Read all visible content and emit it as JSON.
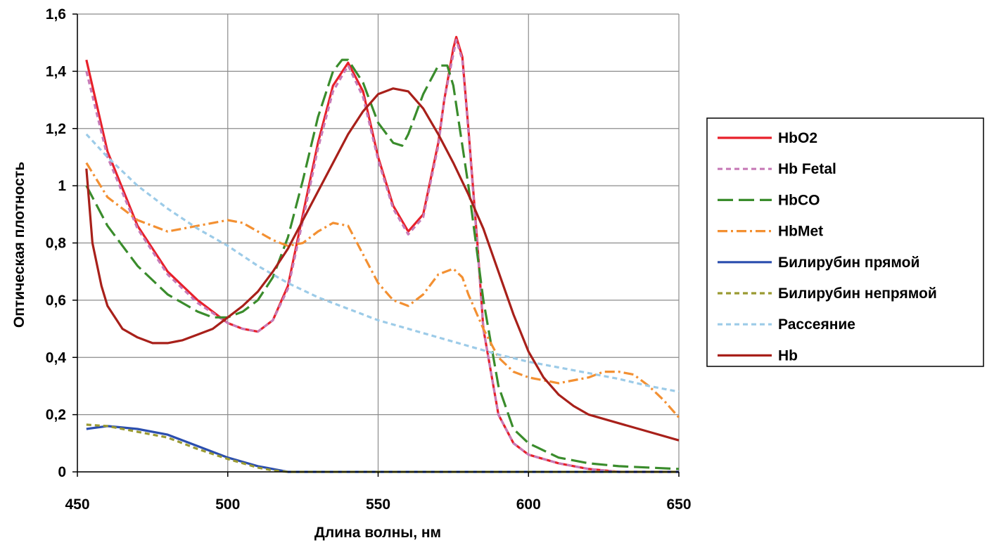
{
  "chart_data": {
    "type": "line",
    "title": "",
    "xlabel": "Длина волны, нм",
    "ylabel": "Оптическая плотность",
    "xlim": [
      450,
      650
    ],
    "ylim": [
      0,
      1.6
    ],
    "x_ticks": [
      450,
      500,
      550,
      600,
      650
    ],
    "x_tick_labels": [
      "450",
      "500",
      "550",
      "600",
      "650"
    ],
    "y_ticks": [
      0,
      0.2,
      0.4,
      0.6,
      0.8,
      1.0,
      1.2,
      1.4,
      1.6
    ],
    "y_tick_labels": [
      "0",
      "0,2",
      "0,4",
      "0,6",
      "0,8",
      "1",
      "1,2",
      "1,4",
      "1,6"
    ],
    "grid": true,
    "legend_position": "right",
    "series": [
      {
        "name": "HbO2",
        "color": "#e8202a",
        "dash": "solid",
        "x": [
          453,
          460,
          470,
          480,
          490,
          500,
          505,
          510,
          515,
          520,
          525,
          530,
          535,
          540,
          545,
          550,
          555,
          560,
          565,
          570,
          572,
          575,
          576,
          578,
          580,
          583,
          585,
          590,
          595,
          600,
          610,
          620,
          630,
          650
        ],
        "y": [
          1.44,
          1.12,
          0.86,
          0.7,
          0.6,
          0.52,
          0.5,
          0.49,
          0.53,
          0.65,
          0.9,
          1.15,
          1.35,
          1.43,
          1.33,
          1.1,
          0.93,
          0.84,
          0.9,
          1.15,
          1.3,
          1.48,
          1.52,
          1.45,
          1.2,
          0.8,
          0.5,
          0.2,
          0.1,
          0.06,
          0.03,
          0.01,
          0.0,
          0.0
        ]
      },
      {
        "name": "Hb Fetal",
        "color": "#c77bb7",
        "dash": "dashed",
        "x": [
          453,
          460,
          470,
          480,
          490,
          500,
          505,
          510,
          515,
          520,
          525,
          530,
          535,
          540,
          545,
          550,
          555,
          560,
          565,
          570,
          572,
          575,
          576,
          578,
          580,
          583,
          585,
          590,
          595,
          600,
          610,
          620,
          630,
          650
        ],
        "y": [
          1.4,
          1.1,
          0.85,
          0.69,
          0.59,
          0.52,
          0.5,
          0.49,
          0.53,
          0.64,
          0.88,
          1.13,
          1.33,
          1.42,
          1.31,
          1.09,
          0.92,
          0.83,
          0.89,
          1.14,
          1.3,
          1.46,
          1.51,
          1.44,
          1.19,
          0.79,
          0.5,
          0.2,
          0.1,
          0.06,
          0.03,
          0.01,
          0.0,
          0.0
        ]
      },
      {
        "name": "HbCO",
        "color": "#3a8c2c",
        "dash": "longdash",
        "x": [
          453,
          460,
          470,
          480,
          490,
          495,
          500,
          505,
          510,
          515,
          520,
          525,
          530,
          535,
          538,
          540,
          545,
          550,
          555,
          558,
          560,
          565,
          570,
          573,
          575,
          580,
          585,
          590,
          595,
          600,
          610,
          620,
          630,
          650
        ],
        "y": [
          1.0,
          0.86,
          0.72,
          0.62,
          0.56,
          0.54,
          0.54,
          0.56,
          0.6,
          0.68,
          0.82,
          1.02,
          1.24,
          1.4,
          1.44,
          1.44,
          1.36,
          1.22,
          1.15,
          1.14,
          1.18,
          1.32,
          1.42,
          1.42,
          1.35,
          1.0,
          0.6,
          0.3,
          0.15,
          0.1,
          0.05,
          0.03,
          0.02,
          0.01
        ]
      },
      {
        "name": "HbMet",
        "color": "#f39032",
        "dash": "dashdot",
        "x": [
          453,
          460,
          470,
          480,
          490,
          500,
          505,
          510,
          515,
          520,
          525,
          530,
          535,
          540,
          545,
          550,
          555,
          560,
          565,
          570,
          575,
          578,
          580,
          585,
          590,
          595,
          600,
          605,
          610,
          620,
          625,
          630,
          635,
          640,
          645,
          650
        ],
        "y": [
          1.08,
          0.96,
          0.88,
          0.84,
          0.86,
          0.88,
          0.87,
          0.84,
          0.81,
          0.79,
          0.8,
          0.84,
          0.87,
          0.86,
          0.76,
          0.66,
          0.6,
          0.58,
          0.62,
          0.69,
          0.71,
          0.68,
          0.62,
          0.5,
          0.4,
          0.35,
          0.33,
          0.32,
          0.31,
          0.33,
          0.35,
          0.35,
          0.34,
          0.3,
          0.25,
          0.19
        ]
      },
      {
        "name": "Билирубин прямой",
        "color": "#2b4eae",
        "dash": "solid",
        "x": [
          453,
          460,
          470,
          480,
          490,
          500,
          510,
          515,
          520,
          525,
          550,
          600,
          650
        ],
        "y": [
          0.15,
          0.16,
          0.15,
          0.13,
          0.09,
          0.05,
          0.02,
          0.01,
          0.0,
          0.0,
          0.0,
          0.0,
          0.0
        ]
      },
      {
        "name": "Билирубин непрямой",
        "color": "#9a9a32",
        "dash": "dashed",
        "x": [
          453,
          460,
          470,
          480,
          490,
          500,
          510,
          515,
          520,
          525,
          550,
          600,
          650
        ],
        "y": [
          0.165,
          0.16,
          0.14,
          0.12,
          0.08,
          0.045,
          0.015,
          0.005,
          0.0,
          0.0,
          0.0,
          0.0,
          0.0
        ]
      },
      {
        "name": "Рассеяние",
        "color": "#9ccbe8",
        "dash": "dashed",
        "x": [
          453,
          460,
          470,
          480,
          490,
          500,
          510,
          520,
          530,
          540,
          550,
          560,
          570,
          580,
          590,
          600,
          610,
          620,
          630,
          640,
          650
        ],
        "y": [
          1.18,
          1.1,
          1.0,
          0.92,
          0.85,
          0.79,
          0.72,
          0.66,
          0.61,
          0.57,
          0.53,
          0.5,
          0.47,
          0.44,
          0.41,
          0.385,
          0.365,
          0.345,
          0.325,
          0.3,
          0.28
        ]
      },
      {
        "name": "Hb",
        "color": "#a8201a",
        "dash": "solid",
        "x": [
          453,
          455,
          458,
          460,
          465,
          470,
          475,
          480,
          485,
          490,
          495,
          500,
          505,
          510,
          515,
          520,
          525,
          530,
          535,
          540,
          545,
          550,
          555,
          560,
          565,
          570,
          575,
          580,
          585,
          590,
          595,
          600,
          605,
          610,
          615,
          620,
          630,
          640,
          650
        ],
        "y": [
          1.06,
          0.8,
          0.65,
          0.58,
          0.5,
          0.47,
          0.45,
          0.45,
          0.46,
          0.48,
          0.5,
          0.54,
          0.58,
          0.63,
          0.7,
          0.78,
          0.88,
          0.98,
          1.08,
          1.18,
          1.26,
          1.32,
          1.34,
          1.33,
          1.27,
          1.18,
          1.08,
          0.97,
          0.85,
          0.7,
          0.55,
          0.42,
          0.33,
          0.27,
          0.23,
          0.2,
          0.17,
          0.14,
          0.11
        ]
      }
    ]
  }
}
